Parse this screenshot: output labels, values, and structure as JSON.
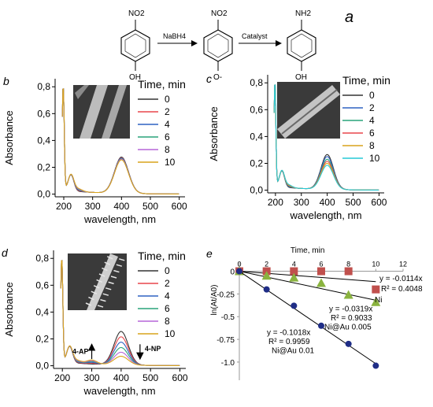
{
  "scheme": {
    "panel_letter": "a",
    "reactant_group": "NO2",
    "reactant_oh": "OH",
    "step1_reagent": "NaBH4",
    "intermediate_group": "NO2",
    "intermediate_o": "O-",
    "step2_reagent": "Catalyst",
    "product_group": "NH2",
    "product_oh": "OH"
  },
  "chart_data": [
    {
      "panel": "b",
      "type": "line",
      "xlabel": "wavelength, nm",
      "ylabel": "Absorbance",
      "xlim": [
        170,
        620
      ],
      "ylim": [
        -0.02,
        0.86
      ],
      "xticks": [
        200,
        300,
        400,
        500,
        600
      ],
      "yticks": [
        0.0,
        0.2,
        0.4,
        0.6,
        0.8
      ],
      "xtick_labels": [
        "200",
        "300",
        "400",
        "500",
        "600"
      ],
      "ytick_labels": [
        "0,0",
        "0,2",
        "0,4",
        "0,6",
        "0,8"
      ],
      "legend_title": "Time, min",
      "legend_position": "top-right",
      "inset": "SEM image",
      "series": [
        {
          "name": "0",
          "color": "#333333",
          "peak": 0.27
        },
        {
          "name": "2",
          "color": "#e8474b",
          "peak": 0.265
        },
        {
          "name": "4",
          "color": "#2f62c2",
          "peak": 0.262
        },
        {
          "name": "6",
          "color": "#29a37a",
          "peak": 0.258
        },
        {
          "name": "8",
          "color": "#b566d9",
          "peak": 0.255
        },
        {
          "name": "10",
          "color": "#d9a41c",
          "peak": 0.25
        }
      ]
    },
    {
      "panel": "c",
      "type": "line",
      "xlabel": "wavelength, nm",
      "ylabel": "Absorbance",
      "xlim": [
        170,
        620
      ],
      "ylim": [
        -0.02,
        0.86
      ],
      "xticks": [
        200,
        300,
        400,
        500,
        600
      ],
      "yticks": [
        0.0,
        0.2,
        0.4,
        0.6,
        0.8
      ],
      "xtick_labels": [
        "200",
        "300",
        "400",
        "500",
        "600"
      ],
      "ytick_labels": [
        "0,0",
        "0,2",
        "0,4",
        "0,6",
        "0,8"
      ],
      "legend_title": "Time, min",
      "legend_position": "top-right",
      "inset": "SEM image",
      "series": [
        {
          "name": "0",
          "color": "#333333",
          "peak": 0.26
        },
        {
          "name": "2",
          "color": "#2f62c2",
          "peak": 0.245
        },
        {
          "name": "4",
          "color": "#29a37a",
          "peak": 0.225
        },
        {
          "name": "6",
          "color": "#e8474b",
          "peak": 0.21
        },
        {
          "name": "8",
          "color": "#d9a41c",
          "peak": 0.195
        },
        {
          "name": "10",
          "color": "#27c9d6",
          "peak": 0.18
        }
      ]
    },
    {
      "panel": "d",
      "type": "line",
      "xlabel": "wavelength, nm",
      "ylabel": "Absorbance",
      "xlim": [
        170,
        620
      ],
      "ylim": [
        -0.02,
        0.86
      ],
      "xticks": [
        200,
        300,
        400,
        500,
        600
      ],
      "yticks": [
        0.0,
        0.2,
        0.4,
        0.6,
        0.8
      ],
      "xtick_labels": [
        "200",
        "300",
        "400",
        "500",
        "600"
      ],
      "ytick_labels": [
        "0,0",
        "0,2",
        "0,4",
        "0,6",
        "0,8"
      ],
      "legend_title": "Time, min",
      "legend_position": "top-right",
      "inset": "SEM image",
      "annotations": [
        "4-AP",
        "4-NP"
      ],
      "series": [
        {
          "name": "0",
          "color": "#333333",
          "peak": 0.25
        },
        {
          "name": "2",
          "color": "#e8474b",
          "peak": 0.21
        },
        {
          "name": "4",
          "color": "#2f62c2",
          "peak": 0.17
        },
        {
          "name": "6",
          "color": "#29a37a",
          "peak": 0.13
        },
        {
          "name": "8",
          "color": "#b566d9",
          "peak": 0.095
        },
        {
          "name": "10",
          "color": "#d9a41c",
          "peak": 0.065
        }
      ]
    },
    {
      "panel": "e",
      "type": "scatter",
      "xlabel": "Time, min",
      "ylabel": "ln(At/A0)",
      "xlim": [
        0,
        12
      ],
      "ylim": [
        -1.2,
        0.1
      ],
      "xticks": [
        0,
        2,
        4,
        6,
        8,
        10,
        12
      ],
      "yticks": [
        0,
        -0.25,
        -0.5,
        -0.75,
        -1.0
      ],
      "xtick_labels": [
        "0",
        "2",
        "4",
        "6",
        "8",
        "10",
        "12"
      ],
      "ytick_labels": [
        "0",
        "-0.25",
        "-0.5",
        "-0.75",
        "-1.0"
      ],
      "series": [
        {
          "name": "Ni",
          "marker": "square",
          "color": "#c0504d",
          "x": [
            0,
            2,
            4,
            6,
            8,
            10
          ],
          "y": [
            0,
            0,
            0,
            0,
            0,
            -0.2
          ],
          "fit": {
            "slope": -0.0114,
            "equation": "y = -0.0114x",
            "r2": "R² = 0.4048"
          }
        },
        {
          "name": "Ni@Au 0.005",
          "marker": "triangle",
          "color": "#8ab33f",
          "x": [
            0,
            2,
            4,
            6,
            8,
            10
          ],
          "y": [
            0,
            -0.05,
            -0.07,
            -0.13,
            -0.26,
            -0.34
          ],
          "fit": {
            "slope": -0.0319,
            "equation": "y = -0.0319x",
            "r2": "R² = 0.9033"
          }
        },
        {
          "name": "Ni@Au 0.01",
          "marker": "circle",
          "color": "#1f2d86",
          "x": [
            0,
            2,
            4,
            6,
            8,
            10
          ],
          "y": [
            0,
            -0.2,
            -0.38,
            -0.6,
            -0.8,
            -1.04
          ],
          "fit": {
            "slope": -0.1018,
            "equation": "y = -0.1018x",
            "r2": "R² = 0.9959"
          }
        }
      ]
    }
  ]
}
